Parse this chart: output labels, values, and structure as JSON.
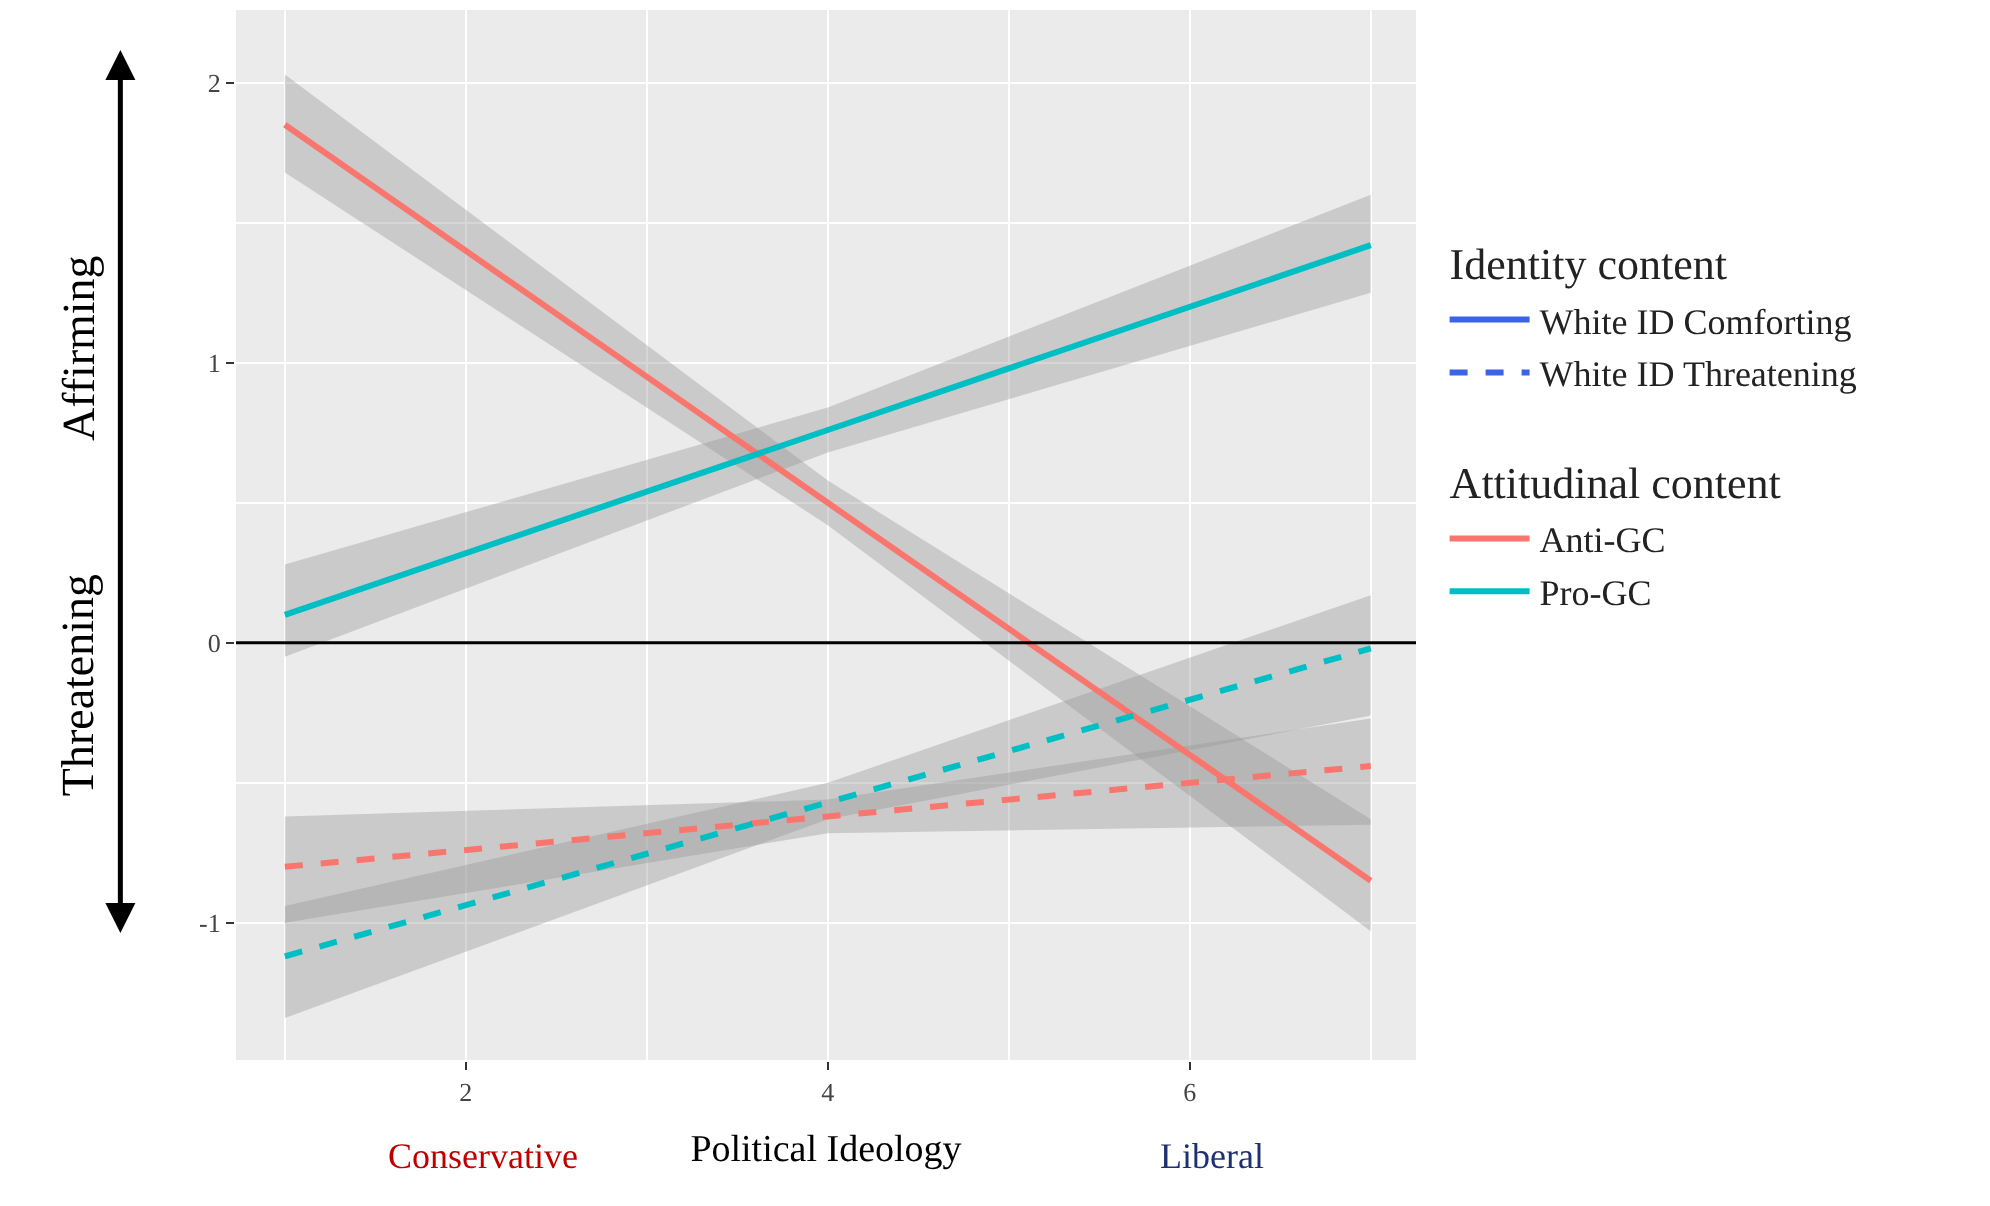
{
  "chart_data": {
    "type": "line",
    "xlabel": "Political Ideology",
    "legend_title": [
      "Identity content",
      "Attitudinal content"
    ],
    "x": [
      1,
      4,
      7
    ],
    "xlim": [
      0.73,
      7.25
    ],
    "xticks": [
      2,
      4,
      6
    ],
    "ylim": [
      -1.49,
      2.26
    ],
    "yticks": [
      -1,
      0,
      1,
      2
    ],
    "grid": true,
    "legend": "right",
    "ref_lines": [
      {
        "axis": "y",
        "value": 0,
        "color": "#000000"
      }
    ],
    "annotations": [
      "Affirming",
      "Threatening",
      "Conservative",
      "Liberal"
    ],
    "series": [
      {
        "color": "#f8766d",
        "line_style": "solid",
        "values": [
          1.85,
          0.5,
          -0.85
        ],
        "lower": [
          1.68,
          0.42,
          -1.03
        ],
        "upper": [
          2.03,
          0.58,
          -0.63
        ]
      },
      {
        "color": "#00bfc4",
        "line_style": "solid",
        "values": [
          0.1,
          0.76,
          1.42
        ],
        "lower": [
          -0.05,
          0.68,
          1.25
        ],
        "upper": [
          0.28,
          0.84,
          1.6
        ]
      },
      {
        "color": "#f8766d",
        "line_style": "dashed",
        "values": [
          -0.8,
          -0.62,
          -0.44
        ],
        "lower": [
          -1.0,
          -0.68,
          -0.65
        ],
        "upper": [
          -0.62,
          -0.56,
          -0.27
        ]
      },
      {
        "color": "#00bfc4",
        "line_style": "dashed",
        "values": [
          -1.12,
          -0.57,
          -0.02
        ],
        "lower": [
          -1.34,
          -0.63,
          -0.26
        ],
        "upper": [
          -0.94,
          -0.5,
          0.17
        ]
      },
      {
        "name": "White ID Comforting",
        "color": "#3b63e6",
        "line_style": "solid",
        "values": [
          null,
          null,
          null
        ]
      },
      {
        "name": "White ID Threatening",
        "color": "#3b63e6",
        "line_style": "dashed",
        "values": [
          null,
          null,
          null
        ]
      },
      {
        "name": "Anti-GC",
        "color": "#f8766d",
        "line_style": "solid",
        "values": [
          null,
          null,
          null
        ]
      },
      {
        "name": "Pro-GC",
        "color": "#00bfc4",
        "line_style": "solid",
        "values": [
          null,
          null,
          null
        ]
      }
    ]
  }
}
